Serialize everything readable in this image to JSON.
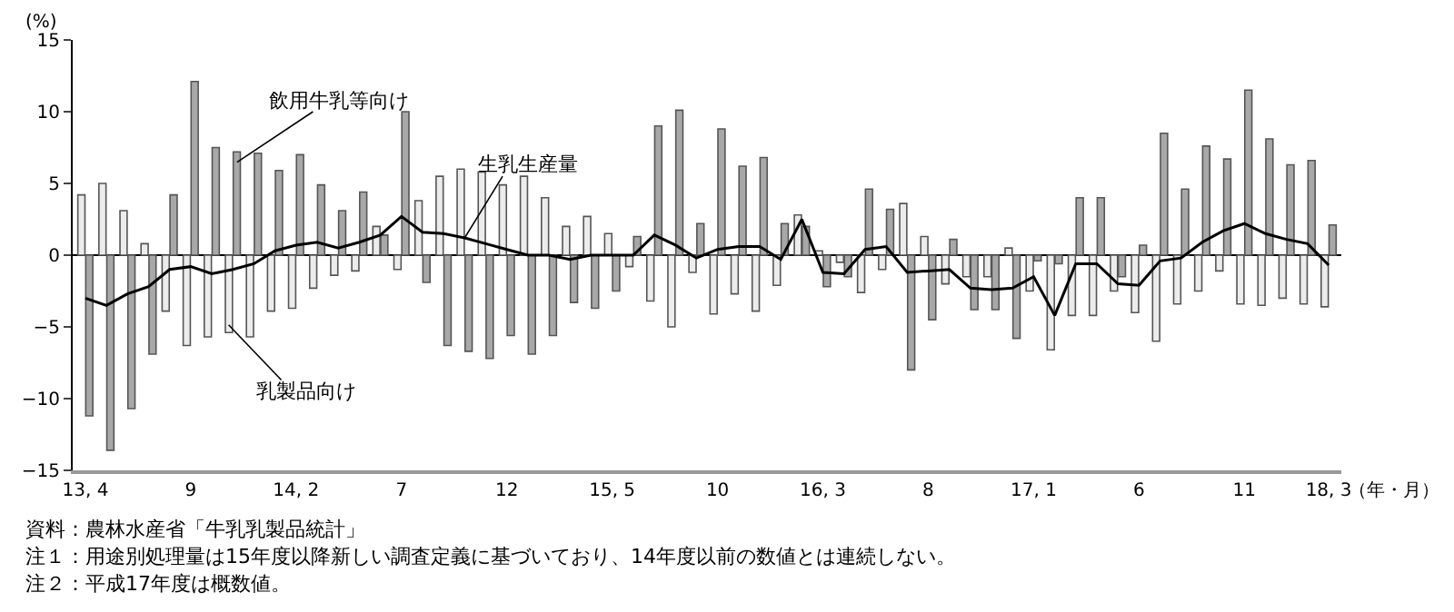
{
  "chart_data": {
    "type": "bar",
    "categories": [
      "13, 4",
      null,
      null,
      null,
      null,
      "9",
      null,
      null,
      null,
      null,
      "14, 2",
      null,
      null,
      null,
      null,
      "7",
      null,
      null,
      null,
      null,
      "12",
      null,
      null,
      null,
      null,
      "15, 5",
      null,
      null,
      null,
      null,
      "10",
      null,
      null,
      null,
      null,
      "16, 3",
      null,
      null,
      null,
      null,
      "8",
      null,
      null,
      null,
      null,
      "17, 1",
      null,
      null,
      null,
      null,
      "6",
      null,
      null,
      null,
      null,
      "11",
      null,
      null,
      null,
      "18, 3"
    ],
    "series": [
      {
        "name": "乳製品向け",
        "color": "#ececec",
        "values": [
          4.2,
          5.0,
          3.1,
          0.8,
          -3.9,
          -6.3,
          -5.7,
          -5.4,
          -5.7,
          -3.9,
          -3.7,
          -2.3,
          -1.4,
          -1.1,
          2.0,
          -1.0,
          3.8,
          5.5,
          6.0,
          5.8,
          4.9,
          5.5,
          4.0,
          2.0,
          2.7,
          1.5,
          -0.8,
          -3.2,
          -5.0,
          -1.2,
          -4.1,
          -2.7,
          -3.9,
          -2.1,
          2.8,
          0.3,
          -0.5,
          -2.6,
          -1.0,
          3.6,
          1.3,
          -2.0,
          -1.5,
          -1.5,
          0.5,
          -2.5,
          -6.6,
          -4.2,
          -4.2,
          -2.5,
          -4.0,
          -6.0,
          -3.4,
          -2.5,
          -1.1,
          -3.4,
          -3.5,
          -3.0,
          -3.4,
          -3.6
        ]
      },
      {
        "name": "飲用牛乳等向け",
        "color": "#a8a8a8",
        "values": [
          -11.2,
          -13.6,
          -10.7,
          -6.9,
          4.2,
          12.1,
          7.5,
          7.2,
          7.1,
          5.9,
          7.0,
          4.9,
          3.1,
          4.4,
          1.4,
          10.0,
          -1.9,
          -6.3,
          -6.7,
          -7.2,
          -5.6,
          -6.9,
          -5.6,
          -3.3,
          -3.7,
          -2.5,
          1.3,
          9.0,
          10.1,
          2.2,
          8.8,
          6.2,
          6.8,
          2.2,
          2.0,
          -2.2,
          -1.5,
          4.6,
          3.2,
          -8.0,
          -4.5,
          1.1,
          -3.8,
          -3.8,
          -5.8,
          -0.4,
          -0.6,
          4.0,
          4.0,
          -1.5,
          0.7,
          8.5,
          4.6,
          7.6,
          6.7,
          11.5,
          8.1,
          6.3,
          6.6,
          2.1
        ]
      },
      {
        "name": "生乳生産量",
        "type": "line",
        "color": "#000000",
        "values": [
          -3.0,
          -3.5,
          -2.7,
          -2.2,
          -1.0,
          -0.8,
          -1.3,
          -1.0,
          -0.6,
          0.3,
          0.7,
          0.9,
          0.5,
          0.9,
          1.4,
          2.7,
          1.6,
          1.5,
          1.2,
          0.8,
          0.4,
          0.0,
          0.0,
          -0.3,
          0.0,
          0.0,
          0.0,
          1.4,
          0.7,
          -0.2,
          0.4,
          0.6,
          0.6,
          -0.3,
          2.5,
          -1.2,
          -1.3,
          0.4,
          0.6,
          -1.2,
          -1.1,
          -1.0,
          -2.3,
          -2.4,
          -2.3,
          -1.5,
          -4.2,
          -0.6,
          -0.6,
          -2.0,
          -2.1,
          -0.4,
          -0.2,
          0.9,
          1.7,
          2.2,
          1.5,
          1.1,
          0.8,
          -0.7
        ]
      }
    ],
    "ylim": [
      -15,
      15
    ],
    "yticks": [
      -15,
      -10,
      -5,
      0,
      5,
      10,
      15
    ],
    "ylabel": "(%)",
    "xlabel": "（年・月）",
    "annotations": [
      "資料：農林水産省「牛乳乳製品統計」",
      "注１：用途別処理量は15年度以降新しい調査定義に基づいており、14年度以前の数値とは連続しない。",
      "注２：平成17年度は概数値。"
    ],
    "legend": false
  }
}
